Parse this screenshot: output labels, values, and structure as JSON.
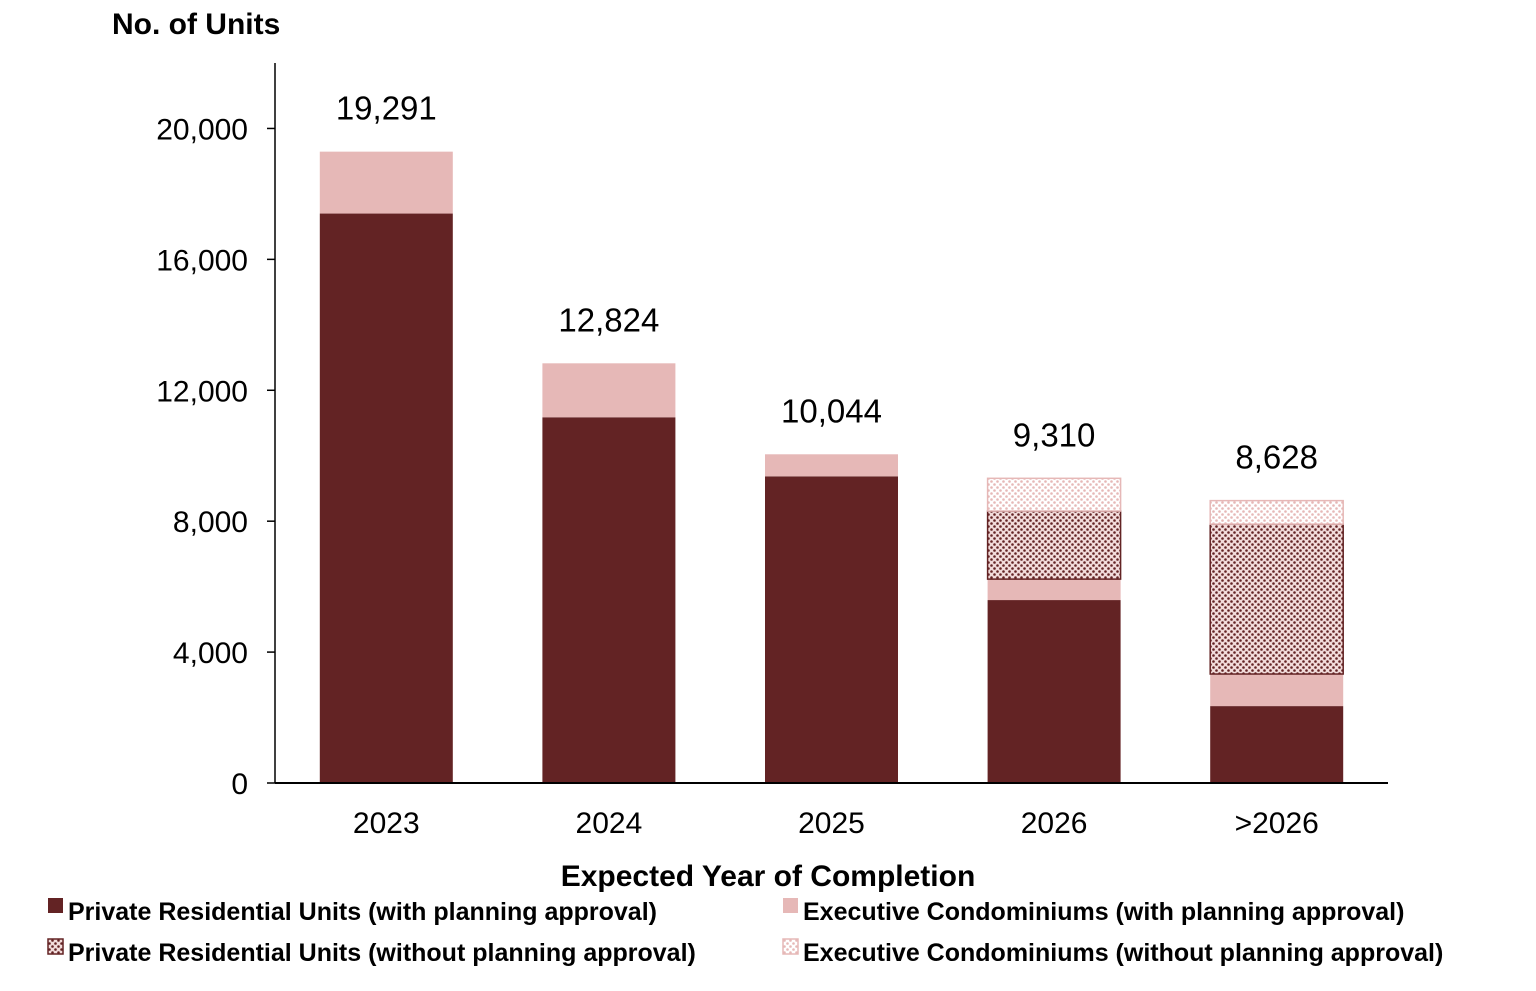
{
  "chart_data": {
    "type": "bar",
    "stacked": true,
    "title": "",
    "xlabel": "Expected Year of Completion",
    "ylabel": "No. of Units",
    "ylim": [
      0,
      22000
    ],
    "yticks": [
      0,
      4000,
      8000,
      12000,
      16000,
      20000
    ],
    "ytick_labels": [
      "0",
      "4,000",
      "8,000",
      "12,000",
      "16,000",
      "20,000"
    ],
    "grid": false,
    "legend_position": "bottom",
    "categories": [
      "2023",
      "2024",
      "2025",
      "2026",
      ">2026"
    ],
    "totals": [
      19291,
      12824,
      10044,
      9310,
      8628
    ],
    "total_labels": [
      "19,291",
      "12,824",
      "10,044",
      "9,310",
      "8,628"
    ],
    "series": [
      {
        "name": "Private Residential Units (with planning approval)",
        "values": [
          17400,
          11175,
          9370,
          5590,
          2350
        ],
        "color": "#632324",
        "pattern": "solid"
      },
      {
        "name": "Executive Condominiums (with planning approval)",
        "values": [
          1891,
          1649,
          674,
          640,
          980
        ],
        "color": "#e6b8b7",
        "pattern": "solid"
      },
      {
        "name": "Private Residential Units (without planning approval)",
        "values": [
          0,
          0,
          0,
          2080,
          4580
        ],
        "color": "#632324",
        "pattern": "dotted"
      },
      {
        "name": "Executive Condominiums (without planning approval)",
        "values": [
          0,
          0,
          0,
          1000,
          718
        ],
        "color": "#e6b8b7",
        "pattern": "dotted"
      }
    ]
  }
}
